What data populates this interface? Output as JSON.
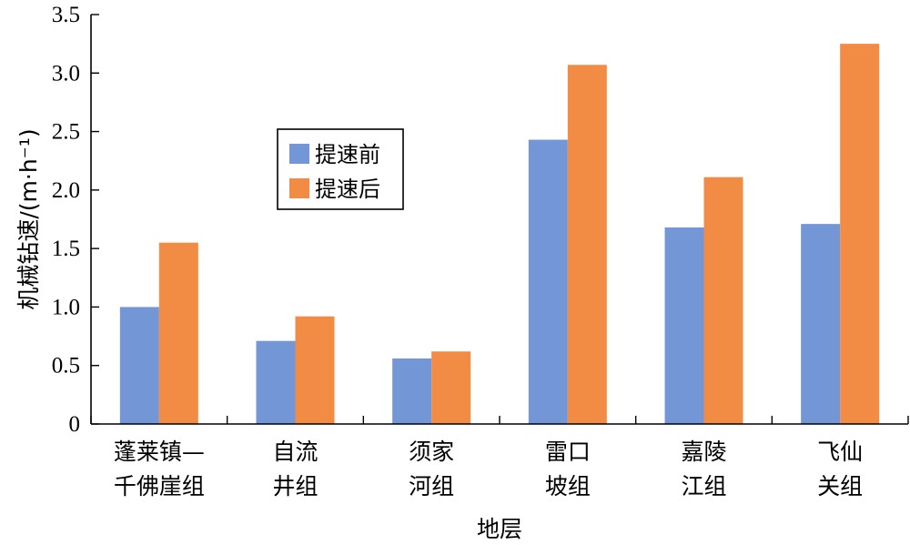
{
  "chart_data": {
    "type": "bar",
    "categories": [
      [
        "蓬莱镇—",
        "千佛崖组"
      ],
      [
        "自流",
        "井组"
      ],
      [
        "须家",
        "河组"
      ],
      [
        "雷口",
        "坡组"
      ],
      [
        "嘉陵",
        "江组"
      ],
      [
        "飞仙",
        "关组"
      ]
    ],
    "series": [
      {
        "name": "提速前",
        "color": "#7396d6",
        "values": [
          1.0,
          0.71,
          0.56,
          2.43,
          1.68,
          1.71
        ]
      },
      {
        "name": "提速后",
        "color": "#f28c45",
        "values": [
          1.55,
          0.92,
          0.62,
          3.07,
          2.11,
          3.25
        ]
      }
    ],
    "title": "",
    "xlabel": "地层",
    "ylabel": "机械钻速/(m·h⁻¹)",
    "ylim": [
      0,
      3.5
    ],
    "yticks": [
      0,
      0.5,
      1.0,
      1.5,
      2.0,
      2.5,
      3.0,
      3.5
    ],
    "ytick_labels": [
      "0",
      "0.5",
      "1.0",
      "1.5",
      "2.0",
      "2.5",
      "3.0",
      "3.5"
    ],
    "grid": false,
    "legend_position": "upper-left inside plot"
  }
}
